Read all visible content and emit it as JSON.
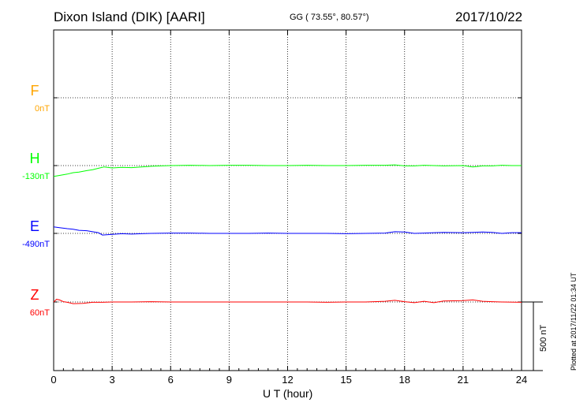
{
  "header": {
    "title": "Dixon Island (DIK)  [AARI]",
    "coordinates": "GG ( 73.55°,  80.57°)",
    "date": "2017/10/22"
  },
  "side": {
    "plotted": "Plotted at 2017/11/22 01:34 UT",
    "scale": "500 nT"
  },
  "colors": {
    "F": "#ffa500",
    "H": "#00ff00",
    "E": "#0000ff",
    "Z": "#ff0000"
  },
  "chart_data": {
    "type": "line",
    "xlabel": "U T (hour)",
    "xlim": [
      0,
      24
    ],
    "xticks": [
      0,
      3,
      6,
      9,
      12,
      15,
      18,
      21,
      24
    ],
    "xtick_labels": [
      "0",
      "3",
      "6",
      "9",
      "12",
      "15",
      "18",
      "21",
      "24"
    ],
    "grid": true,
    "series": [
      {
        "name": "F",
        "baseline_label": "0nT",
        "x": [],
        "values": []
      },
      {
        "name": "H",
        "baseline_label": "-130nT",
        "x": [
          0,
          0.3,
          0.7,
          1.0,
          1.3,
          1.7,
          2.0,
          2.3,
          2.6,
          3.0,
          3.5,
          4.0,
          4.5,
          5.0,
          5.5,
          6.0,
          7,
          8,
          9,
          10,
          11,
          12,
          13,
          14,
          15,
          16,
          17,
          17.5,
          18,
          18.5,
          19,
          19.5,
          20,
          21,
          21.5,
          22,
          22.5,
          23,
          23.5,
          24
        ],
        "values": [
          -160,
          -145,
          -125,
          -105,
          -95,
          -75,
          -60,
          -40,
          -20,
          -35,
          -25,
          -30,
          -20,
          -10,
          -5,
          0,
          5,
          0,
          5,
          5,
          0,
          0,
          5,
          0,
          0,
          5,
          5,
          10,
          -5,
          -5,
          5,
          0,
          -5,
          0,
          -20,
          -5,
          -5,
          5,
          0,
          0
        ]
      },
      {
        "name": "E",
        "baseline_label": "-490nT",
        "x": [
          0,
          0.3,
          0.7,
          1.0,
          1.3,
          1.7,
          2.0,
          2.3,
          2.5,
          3.0,
          3.5,
          4.0,
          4.5,
          5.0,
          6.0,
          7,
          8,
          9,
          10,
          11,
          12,
          13,
          14,
          15,
          16,
          17,
          17.5,
          18,
          18.5,
          19,
          19.5,
          20,
          21,
          21.5,
          22,
          22.5,
          23,
          23.5,
          24
        ],
        "values": [
          95,
          85,
          70,
          60,
          45,
          40,
          25,
          10,
          -25,
          -15,
          -5,
          -10,
          -5,
          0,
          5,
          5,
          0,
          0,
          0,
          5,
          0,
          0,
          0,
          -5,
          0,
          5,
          25,
          20,
          0,
          5,
          10,
          15,
          10,
          15,
          20,
          15,
          0,
          10,
          10
        ]
      },
      {
        "name": "Z",
        "baseline_label": "60nT",
        "x": [
          0,
          0.15,
          0.3,
          0.5,
          0.7,
          1.0,
          1.5,
          2.0,
          2.5,
          3.0,
          4,
          5,
          6,
          7,
          8,
          9,
          10,
          11,
          12,
          13,
          14,
          15,
          16,
          17,
          17.5,
          18,
          18.5,
          19,
          19.5,
          20,
          21,
          21.5,
          22,
          22.5,
          23,
          24
        ],
        "values": [
          0,
          40,
          30,
          5,
          -5,
          -25,
          -20,
          -5,
          -5,
          0,
          0,
          5,
          0,
          0,
          0,
          0,
          0,
          0,
          0,
          0,
          -5,
          0,
          0,
          10,
          25,
          5,
          -10,
          10,
          -10,
          15,
          20,
          30,
          10,
          5,
          0,
          -5
        ]
      }
    ],
    "scale_bar_nT": 500
  }
}
